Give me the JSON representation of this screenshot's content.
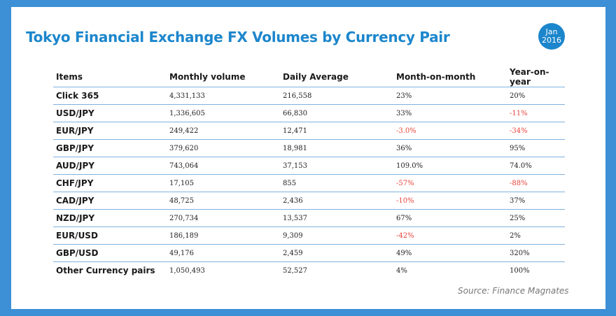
{
  "title": "Tokyo Financial Exchange FX Volumes by Currency Pair",
  "badge": {
    "month": "Jan",
    "year": "2016"
  },
  "table": {
    "headers": [
      "Items",
      "Monthly volume",
      "Daily Average",
      "Month-on-month",
      "Year-on-year"
    ],
    "rows": [
      [
        "Click 365",
        "4,331,133",
        "216,558",
        "23%",
        "20%"
      ],
      [
        "USD/JPY",
        "1,336,605",
        "66,830",
        "33%",
        "-11%"
      ],
      [
        "EUR/JPY",
        "249,422",
        "12,471",
        "-3.0%",
        "-34%"
      ],
      [
        "GBP/JPY",
        "379,620",
        "18,981",
        "36%",
        "95%"
      ],
      [
        "AUD/JPY",
        "743,064",
        "37,153",
        "109.0%",
        "74.0%"
      ],
      [
        "CHF/JPY",
        "17,105",
        "855",
        "-57%",
        "-88%"
      ],
      [
        "CAD/JPY",
        "48,725",
        "2,436",
        "-10%",
        "37%"
      ],
      [
        "NZD/JPY",
        "270,734",
        "13,537",
        "67%",
        "25%"
      ],
      [
        "EUR/USD",
        "186,189",
        "9,309",
        "-42%",
        "2%"
      ],
      [
        "GBP/USD",
        "49,176",
        "2,459",
        "49%",
        "320%"
      ],
      [
        "Other Currency pairs",
        "1,050,493",
        "52,527",
        "4%",
        "100%"
      ]
    ]
  },
  "source": "Source: Finance Magnates",
  "colors": {
    "accent": "#1c86cc",
    "frame": "#3d8fd6",
    "negative": "#e8453c",
    "rule": "#7fb2df"
  }
}
